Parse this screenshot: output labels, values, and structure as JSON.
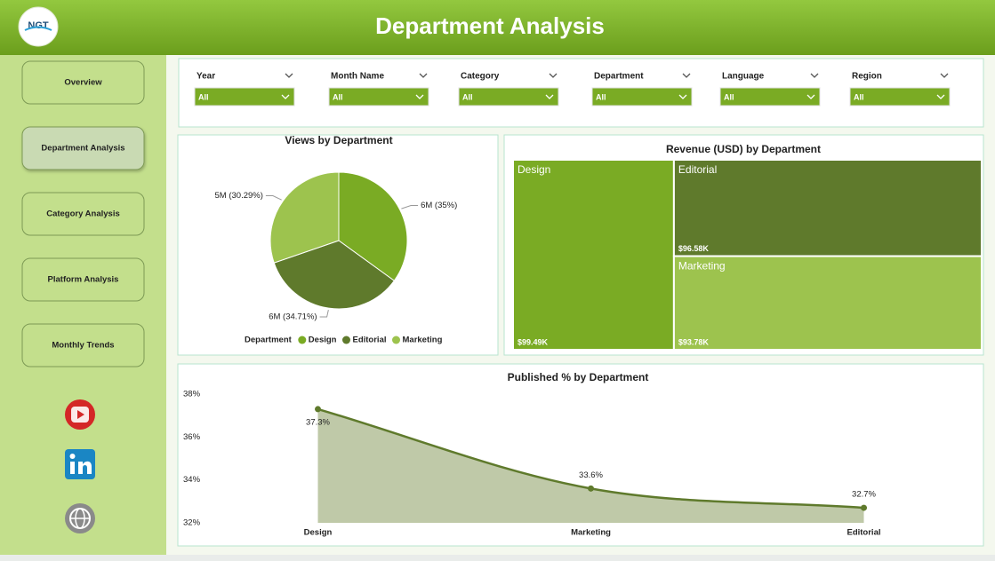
{
  "header": {
    "logo": "NGT",
    "title": "Department Analysis"
  },
  "nav": [
    "Overview",
    "Department Analysis",
    "Category Analysis",
    "Platform Analysis",
    "Monthly Trends"
  ],
  "active_nav": 1,
  "filters": [
    {
      "label": "Year",
      "value": "All"
    },
    {
      "label": "Month Name",
      "value": "All"
    },
    {
      "label": "Category",
      "value": "All"
    },
    {
      "label": "Department",
      "value": "All"
    },
    {
      "label": "Language",
      "value": "All"
    },
    {
      "label": "Region",
      "value": "All"
    }
  ],
  "chart_data": [
    {
      "type": "pie",
      "title": "Views by Department",
      "legend_title": "Department",
      "categories": [
        "Design",
        "Editorial",
        "Marketing"
      ],
      "values": [
        35,
        34.71,
        30.29
      ],
      "value_labels": [
        "6M (35%)",
        "6M (34.71%)",
        "5M (30.29%)"
      ],
      "colors": [
        "#7aab24",
        "#5f7a2c",
        "#9dc34e"
      ]
    },
    {
      "type": "treemap",
      "title": "Revenue (USD) by Department",
      "categories": [
        "Design",
        "Editorial",
        "Marketing"
      ],
      "values": [
        99490,
        96580,
        93780
      ],
      "value_labels": [
        "$99.49K",
        "$96.58K",
        "$93.78K"
      ],
      "colors": [
        "#7aab24",
        "#5f7a2c",
        "#9dc34e"
      ]
    },
    {
      "type": "area",
      "title": "Published % by Department",
      "categories": [
        "Design",
        "Marketing",
        "Editorial"
      ],
      "values": [
        37.3,
        33.6,
        32.7
      ],
      "value_labels": [
        "37.3%",
        "33.6%",
        "32.7%"
      ],
      "ylim": [
        32,
        38
      ],
      "yticks": [
        {
          "value": 32,
          "label": "32%"
        },
        {
          "value": 34,
          "label": "34%"
        },
        {
          "value": 36,
          "label": "36%"
        },
        {
          "value": 38,
          "label": "38%"
        }
      ],
      "color": "#5f7a2c",
      "fill": "#bfc9a8",
      "grid": false
    }
  ]
}
